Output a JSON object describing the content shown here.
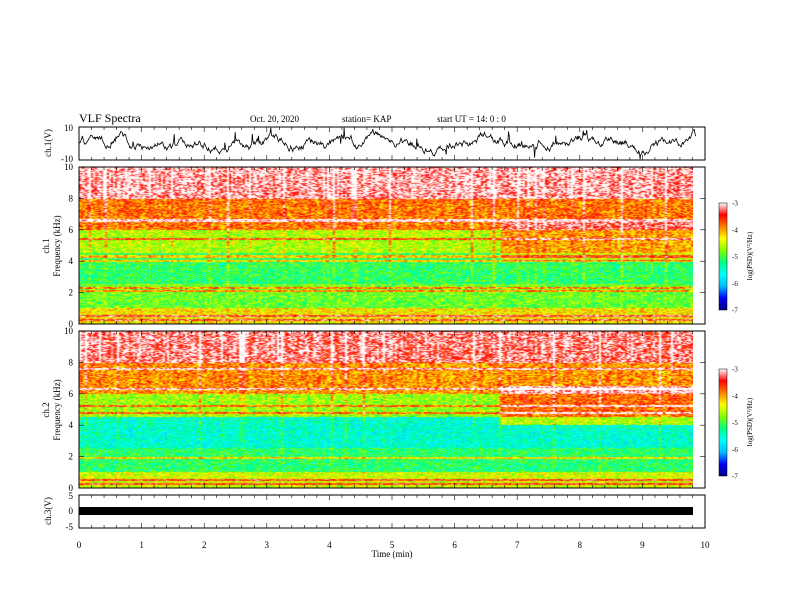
{
  "header": {
    "title": "VLF Spectra",
    "date": "Oct. 20, 2020",
    "station": "station= KAP",
    "start_ut": "start  UT =   14: 0  : 0"
  },
  "colors": {
    "waveform": "#000000",
    "colormap": [
      "#000080",
      "#0000ff",
      "#00bfff",
      "#00ffff",
      "#00ff80",
      "#80ff00",
      "#ffff00",
      "#ff8000",
      "#ff0000",
      "#ffffff"
    ]
  },
  "chart_data": [
    {
      "id": "ch1-waveform",
      "type": "line",
      "ylabel": "ch.1(V)",
      "ylim": [
        -10,
        10
      ],
      "yticks": [
        "10",
        "-10"
      ],
      "x_range_min": [
        0,
        9.85
      ],
      "y_note": "noisy waveform mostly between -5 and 7 V"
    },
    {
      "id": "ch1-spectrogram",
      "type": "heatmap",
      "ylabel": "ch.1\nFrequency (kHz)",
      "ylim": [
        0,
        10
      ],
      "yticks": [
        "0",
        "2",
        "4",
        "6",
        "8",
        "10"
      ],
      "x_range_min": [
        0,
        9.85
      ],
      "colorbar": {
        "label": "log(PSD)(V²/Hz)",
        "range": [
          -7,
          -3
        ],
        "ticks": [
          "-3",
          "-4",
          "-5",
          "-6",
          "-7"
        ]
      },
      "bands_khz": [
        {
          "from": 8,
          "to": 10,
          "level": -3.3
        },
        {
          "from": 6,
          "to": 8,
          "level": -4.0
        },
        {
          "from": 4.5,
          "to": 6,
          "level": -4.7
        },
        {
          "from": 2.5,
          "to": 4.5,
          "level": -5.2
        },
        {
          "from": 1,
          "to": 2.5,
          "level": -4.9
        },
        {
          "from": 0,
          "to": 1,
          "level": -4.3
        }
      ],
      "lines_khz": [
        0.2,
        0.5,
        2.1,
        2.3,
        4.0,
        4.3,
        5.4,
        6.6
      ]
    },
    {
      "id": "ch2-spectrogram",
      "type": "heatmap",
      "ylabel": "ch.2\nFrequency (kHz)",
      "ylim": [
        0,
        10
      ],
      "yticks": [
        "0",
        "2",
        "4",
        "6",
        "8",
        "10"
      ],
      "x_range_min": [
        0,
        9.85
      ],
      "colorbar": {
        "label": "log(PSD)(V²/Hz)",
        "range": [
          -7,
          -3
        ],
        "ticks": [
          "-3",
          "-4",
          "-5",
          "-6",
          "-7"
        ]
      },
      "bands_khz": [
        {
          "from": 8,
          "to": 10,
          "level": -3.4
        },
        {
          "from": 6,
          "to": 8,
          "level": -4.1
        },
        {
          "from": 4.5,
          "to": 6,
          "level": -4.8
        },
        {
          "from": 2.5,
          "to": 4.5,
          "level": -5.6
        },
        {
          "from": 1,
          "to": 2.5,
          "level": -5.2
        },
        {
          "from": 0,
          "to": 1,
          "level": -4.5
        }
      ],
      "lines_khz": [
        0.2,
        0.5,
        1.9,
        4.8,
        5.2,
        6.3,
        7.6
      ]
    },
    {
      "id": "ch3-waveform",
      "type": "line",
      "ylabel": "ch.3(V)",
      "ylim": [
        -5,
        5
      ],
      "yticks": [
        "5",
        "0",
        "-5"
      ],
      "x_range_min": [
        0,
        9.85
      ],
      "y_note": "dense trace between -0.8 and 0.8 V",
      "xlabel": "Time (min)",
      "xlim": [
        0,
        10
      ],
      "xticks": [
        "0",
        "1",
        "2",
        "3",
        "4",
        "5",
        "6",
        "7",
        "8",
        "9",
        "10"
      ]
    }
  ]
}
